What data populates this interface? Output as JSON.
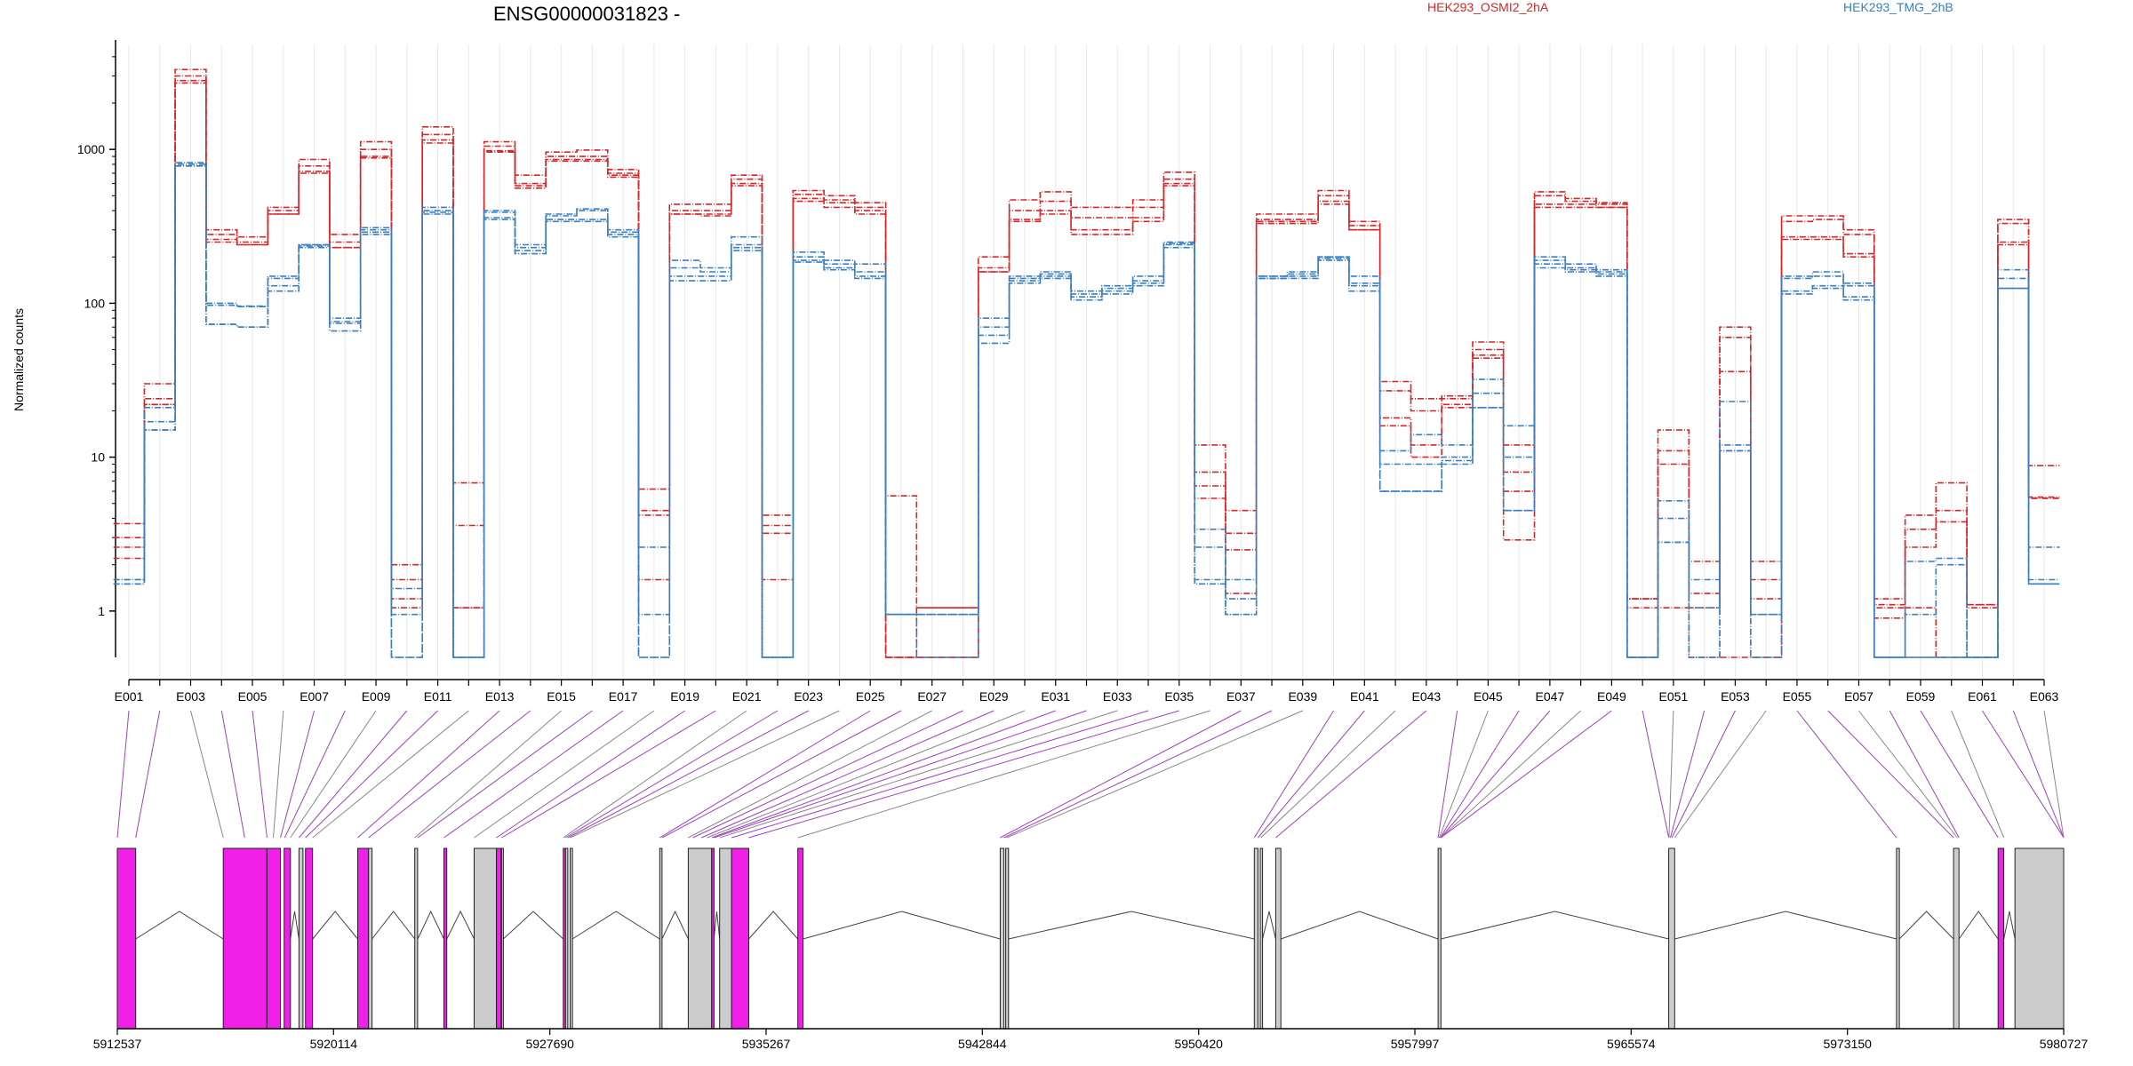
{
  "title": "ENSG00000031823 -",
  "ylabel": "Normalized counts",
  "legend": [
    {
      "name": "HEK293_OSMI2_2hA",
      "color": "#d62728"
    },
    {
      "name": "HEK293_TMG_2hB",
      "color": "#3a7fc1"
    }
  ],
  "colors": {
    "tested": "#f020e8",
    "untested": "#cccccc",
    "connector_tested": "#a040c0",
    "connector_other": "#888888"
  },
  "chart_data": {
    "type": "line",
    "title": "ENSG00000031823 -",
    "xlabel": "",
    "ylabel": "Normalized counts",
    "yscale": "log",
    "ylim": [
      0.5,
      4500
    ],
    "yticks": [
      1,
      10,
      100,
      1000
    ],
    "ytick_labels": [
      "1",
      "10",
      "100",
      "1000"
    ],
    "categories": [
      "E001",
      "E002",
      "E003",
      "E004",
      "E005",
      "E006",
      "E007",
      "E008",
      "E009",
      "E010",
      "E011",
      "E012",
      "E013",
      "E014",
      "E015",
      "E016",
      "E017",
      "E018",
      "E019",
      "E020",
      "E021",
      "E022",
      "E023",
      "E024",
      "E025",
      "E026",
      "E027",
      "E028",
      "E029",
      "E030",
      "E031",
      "E032",
      "E033",
      "E034",
      "E035",
      "E036",
      "E037",
      "E038",
      "E039",
      "E040",
      "E041",
      "E042",
      "E043",
      "E044",
      "E045",
      "E046",
      "E047",
      "E048",
      "E049",
      "E050",
      "E051",
      "E052",
      "E053",
      "E054",
      "E055",
      "E056",
      "E057",
      "E058",
      "E059",
      "E060",
      "E061",
      "E062",
      "E063"
    ],
    "xtick_labels": [
      "E001",
      "E003",
      "E005",
      "E007",
      "E009",
      "E011",
      "E013",
      "E015",
      "E017",
      "E019",
      "E021",
      "E023",
      "E025",
      "E027",
      "E029",
      "E031",
      "E033",
      "E035",
      "E037",
      "E039",
      "E041",
      "E043",
      "E045",
      "E047",
      "E049",
      "E051",
      "E053",
      "E055",
      "E057",
      "E059",
      "E061",
      "E063"
    ],
    "series": [
      {
        "group": "HEK293_OSMI2_2hA",
        "values": [
          3.7,
          30,
          3300,
          300,
          270,
          420,
          860,
          280,
          1120,
          2,
          1400,
          6.8,
          1120,
          680,
          960,
          990,
          740,
          6.2,
          440,
          440,
          680,
          4.2,
          540,
          500,
          450,
          5.6,
          1.05,
          1.05,
          200,
          470,
          530,
          420,
          420,
          470,
          710,
          12,
          4.5,
          380,
          380,
          540,
          340,
          31,
          24,
          25,
          56,
          12,
          530,
          480,
          450,
          1.2,
          15,
          2.1,
          70,
          2.1,
          370,
          370,
          300,
          1.2,
          4.2,
          6.8,
          1.1,
          350,
          8.8
        ]
      },
      {
        "group": "HEK293_OSMI2_2hA",
        "values": [
          3.0,
          24,
          3000,
          280,
          250,
          400,
          780,
          250,
          1000,
          1.6,
          1250,
          3.6,
          1050,
          600,
          900,
          900,
          700,
          4.5,
          400,
          400,
          640,
          3.6,
          510,
          470,
          420,
          0.5,
          1.05,
          1.05,
          170,
          400,
          460,
          360,
          360,
          420,
          640,
          8,
          3.2,
          350,
          350,
          500,
          320,
          27,
          20,
          24,
          50,
          8,
          500,
          460,
          440,
          1.2,
          11,
          1.3,
          60,
          1.6,
          340,
          350,
          280,
          1.1,
          3.4,
          4.5,
          1.1,
          330,
          5.5
        ]
      },
      {
        "group": "HEK293_OSMI2_2hA",
        "values": [
          2.6,
          22,
          2800,
          260,
          240,
          380,
          720,
          230,
          900,
          1.2,
          1150,
          1.05,
          980,
          580,
          860,
          860,
          680,
          4.2,
          380,
          380,
          600,
          3.2,
          480,
          450,
          400,
          0.5,
          0.5,
          0.5,
          160,
          350,
          400,
          300,
          300,
          360,
          600,
          6.5,
          2.5,
          340,
          340,
          460,
          300,
          18,
          12,
          22,
          46,
          6,
          440,
          440,
          420,
          1.05,
          9,
          1.05,
          36,
          1.2,
          270,
          270,
          210,
          1.05,
          2.6,
          3.8,
          1.05,
          250,
          5.4
        ]
      },
      {
        "group": "HEK293_OSMI2_2hA",
        "values": [
          2.2,
          22,
          2700,
          250,
          240,
          380,
          700,
          230,
          880,
          1.05,
          1100,
          1.05,
          960,
          560,
          840,
          840,
          660,
          1.6,
          380,
          370,
          580,
          1.6,
          460,
          420,
          380,
          0.5,
          0.5,
          0.5,
          160,
          340,
          380,
          280,
          280,
          340,
          580,
          5.4,
          1.3,
          330,
          330,
          440,
          300,
          16,
          10,
          21,
          44,
          2.9,
          420,
          420,
          420,
          0.5,
          1.05,
          0.5,
          0.5,
          0.5,
          260,
          260,
          200,
          0.9,
          1.05,
          0.5,
          0.5,
          240,
          5.4
        ]
      },
      {
        "group": "HEK293_TMG_2hB",
        "values": [
          1.6,
          21,
          820,
          100,
          96,
          150,
          240,
          80,
          310,
          1.4,
          420,
          0.5,
          400,
          240,
          380,
          410,
          300,
          2.6,
          190,
          170,
          270,
          0.5,
          215,
          190,
          180,
          0.95,
          0.95,
          0.95,
          80,
          150,
          160,
          120,
          130,
          150,
          250,
          3.4,
          1.6,
          150,
          160,
          200,
          150,
          11,
          14,
          12,
          32,
          16,
          200,
          180,
          165,
          0.5,
          5.2,
          1.6,
          23,
          0.95,
          150,
          160,
          135,
          0.5,
          2.1,
          2.2,
          0.5,
          165,
          2.6
        ]
      },
      {
        "group": "HEK293_TMG_2hB",
        "values": [
          1.6,
          17,
          800,
          97,
          95,
          145,
          240,
          76,
          300,
          0.95,
          400,
          0.5,
          390,
          230,
          370,
          400,
          290,
          0.95,
          170,
          160,
          240,
          0.5,
          200,
          180,
          160,
          0.95,
          0.95,
          0.95,
          70,
          145,
          155,
          115,
          125,
          140,
          245,
          2.6,
          1.2,
          150,
          155,
          200,
          135,
          9,
          9,
          10,
          26,
          10,
          190,
          170,
          160,
          0.5,
          4,
          1.05,
          12,
          0.95,
          145,
          150,
          130,
          0.5,
          0.95,
          2,
          0.5,
          145,
          1.6
        ]
      },
      {
        "group": "HEK293_TMG_2hB",
        "values": [
          1.5,
          15,
          780,
          73,
          70,
          130,
          235,
          74,
          290,
          0.5,
          390,
          0.5,
          360,
          220,
          350,
          350,
          280,
          0.5,
          150,
          150,
          230,
          0.5,
          190,
          170,
          150,
          0.95,
          0.95,
          0.95,
          62,
          140,
          150,
          110,
          120,
          135,
          240,
          1.6,
          0.95,
          145,
          150,
          195,
          130,
          6,
          6,
          9.5,
          21,
          4.5,
          180,
          165,
          155,
          0.5,
          2.8,
          0.5,
          11,
          0.5,
          120,
          130,
          110,
          0.5,
          0.5,
          0.5,
          0.5,
          125,
          1.5
        ]
      },
      {
        "group": "HEK293_TMG_2hB",
        "values": [
          1.5,
          15,
          780,
          73,
          70,
          120,
          230,
          66,
          280,
          0.5,
          380,
          0.5,
          350,
          210,
          340,
          340,
          270,
          0.5,
          140,
          140,
          220,
          0.5,
          185,
          165,
          145,
          0.95,
          0.5,
          0.5,
          55,
          135,
          145,
          105,
          115,
          130,
          230,
          1.5,
          0.95,
          145,
          145,
          190,
          120,
          6,
          6,
          9,
          21,
          4.5,
          170,
          160,
          150,
          0.5,
          2.8,
          0.5,
          11,
          0.5,
          115,
          125,
          105,
          0.5,
          0.5,
          0.5,
          0.5,
          125,
          1.5
        ]
      }
    ]
  },
  "gene_model": {
    "coord_labels": [
      "5912537",
      "5920114",
      "5927690",
      "5935267",
      "5942844",
      "5950420",
      "5957997",
      "5965574",
      "5973150",
      "5980727"
    ],
    "coord_min": 5912537,
    "coord_max": 5980727
  }
}
